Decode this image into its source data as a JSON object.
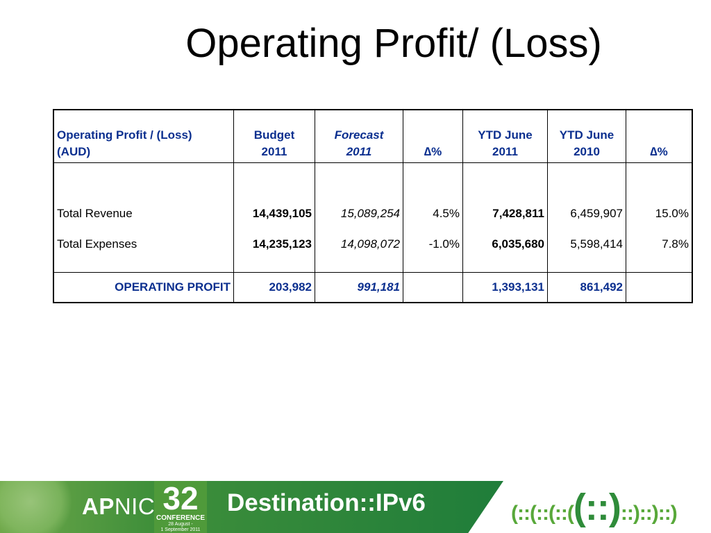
{
  "slide": {
    "title": "Operating Profit/ (Loss)"
  },
  "table": {
    "headers": {
      "desc_line1": "Operating Profit / (Loss)",
      "desc_line2": "(AUD)",
      "budget_line1": "Budget",
      "budget_line2": "2011",
      "forecast_line1": "Forecast",
      "forecast_line2": "2011",
      "delta1": "∆%",
      "ytd2011_line1": "YTD June",
      "ytd2011_line2": "2011",
      "ytd2010_line1": "YTD June",
      "ytd2010_line2": "2010",
      "delta2": "∆%"
    },
    "rows": [
      {
        "label": "Total Revenue",
        "budget": "14,439,105",
        "forecast": "15,089,254",
        "delta1": "4.5%",
        "ytd2011": "7,428,811",
        "ytd2010": "6,459,907",
        "delta2": "15.0%"
      },
      {
        "label": "Total Expenses",
        "budget": "14,235,123",
        "forecast": "14,098,072",
        "delta1": "-1.0%",
        "ytd2011": "6,035,680",
        "ytd2010": "5,598,414",
        "delta2": "7.8%"
      }
    ],
    "total": {
      "label": "OPERATING PROFIT",
      "budget": "203,982",
      "forecast": "991,181",
      "delta1": "",
      "ytd2011": "1,393,131",
      "ytd2010": "861,492",
      "delta2": ""
    }
  },
  "footer": {
    "apnic_ap": "AP",
    "apnic_nic": "NIC",
    "conference_number": "32",
    "conference_word": "CONFERENCE",
    "conference_dates_line1": "28 August -",
    "conference_dates_line2": "1 September 2011",
    "destination": "Destination::IPv6",
    "colors": {
      "band_green": "#1f7d3a",
      "light_green": "#6fa84a",
      "header_blue": "#0b2f8f"
    }
  }
}
